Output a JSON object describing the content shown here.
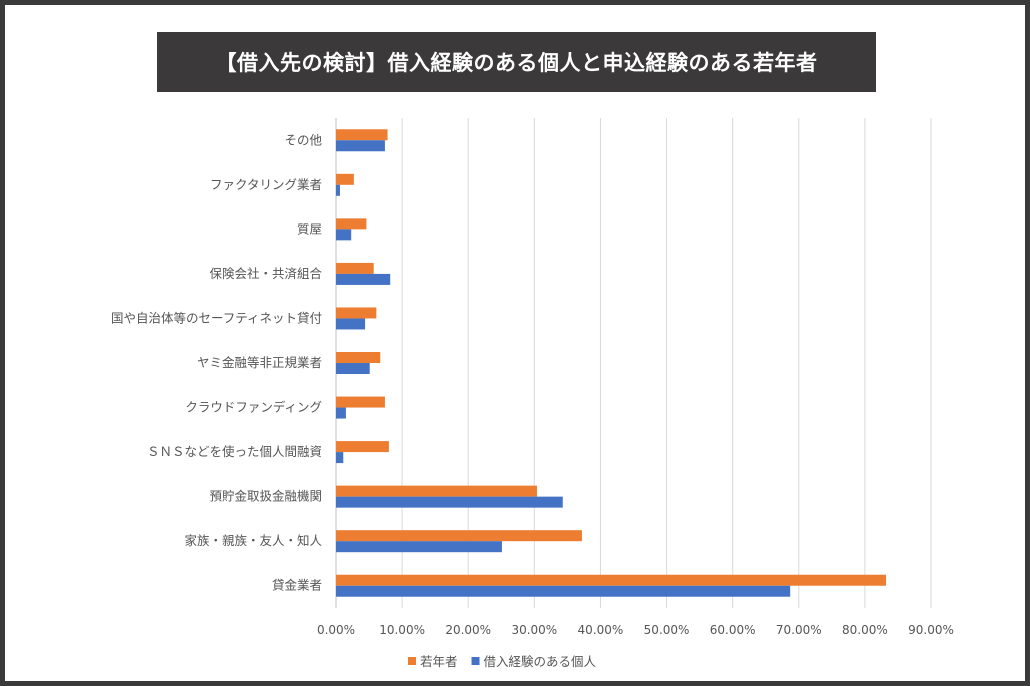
{
  "chart_data": {
    "type": "bar",
    "orientation": "horizontal",
    "title": "【借入先の検討】借入経験のある個人と申込経験のある若年者",
    "categories": [
      "その他",
      "ファクタリング業者",
      "質屋",
      "保険会社・共済組合",
      "国や自治体等のセーフティネット貸付",
      "ヤミ金融等非正規業者",
      "クラウドファンディング",
      "ＳＮＳなどを使った個人間融資",
      "預貯金取扱金融機関",
      "家族・親族・友人・知人",
      "貸金業者"
    ],
    "series": [
      {
        "name": "若年者",
        "color": "#ed7d31",
        "values": [
          7.8,
          2.7,
          4.6,
          5.7,
          6.1,
          6.7,
          7.4,
          8.0,
          30.4,
          37.2,
          83.2
        ]
      },
      {
        "name": "借入経験のある個人",
        "color": "#4472c4",
        "values": [
          7.4,
          0.6,
          2.3,
          8.2,
          4.4,
          5.1,
          1.5,
          1.1,
          34.3,
          25.1,
          68.7
        ]
      }
    ],
    "xlim": [
      0,
      90
    ],
    "xticks": [
      "0.00%",
      "10.00%",
      "20.00%",
      "30.00%",
      "40.00%",
      "50.00%",
      "60.00%",
      "70.00%",
      "80.00%",
      "90.00%"
    ],
    "grid": true,
    "legend": "bottom",
    "xlabel": "",
    "ylabel": ""
  }
}
